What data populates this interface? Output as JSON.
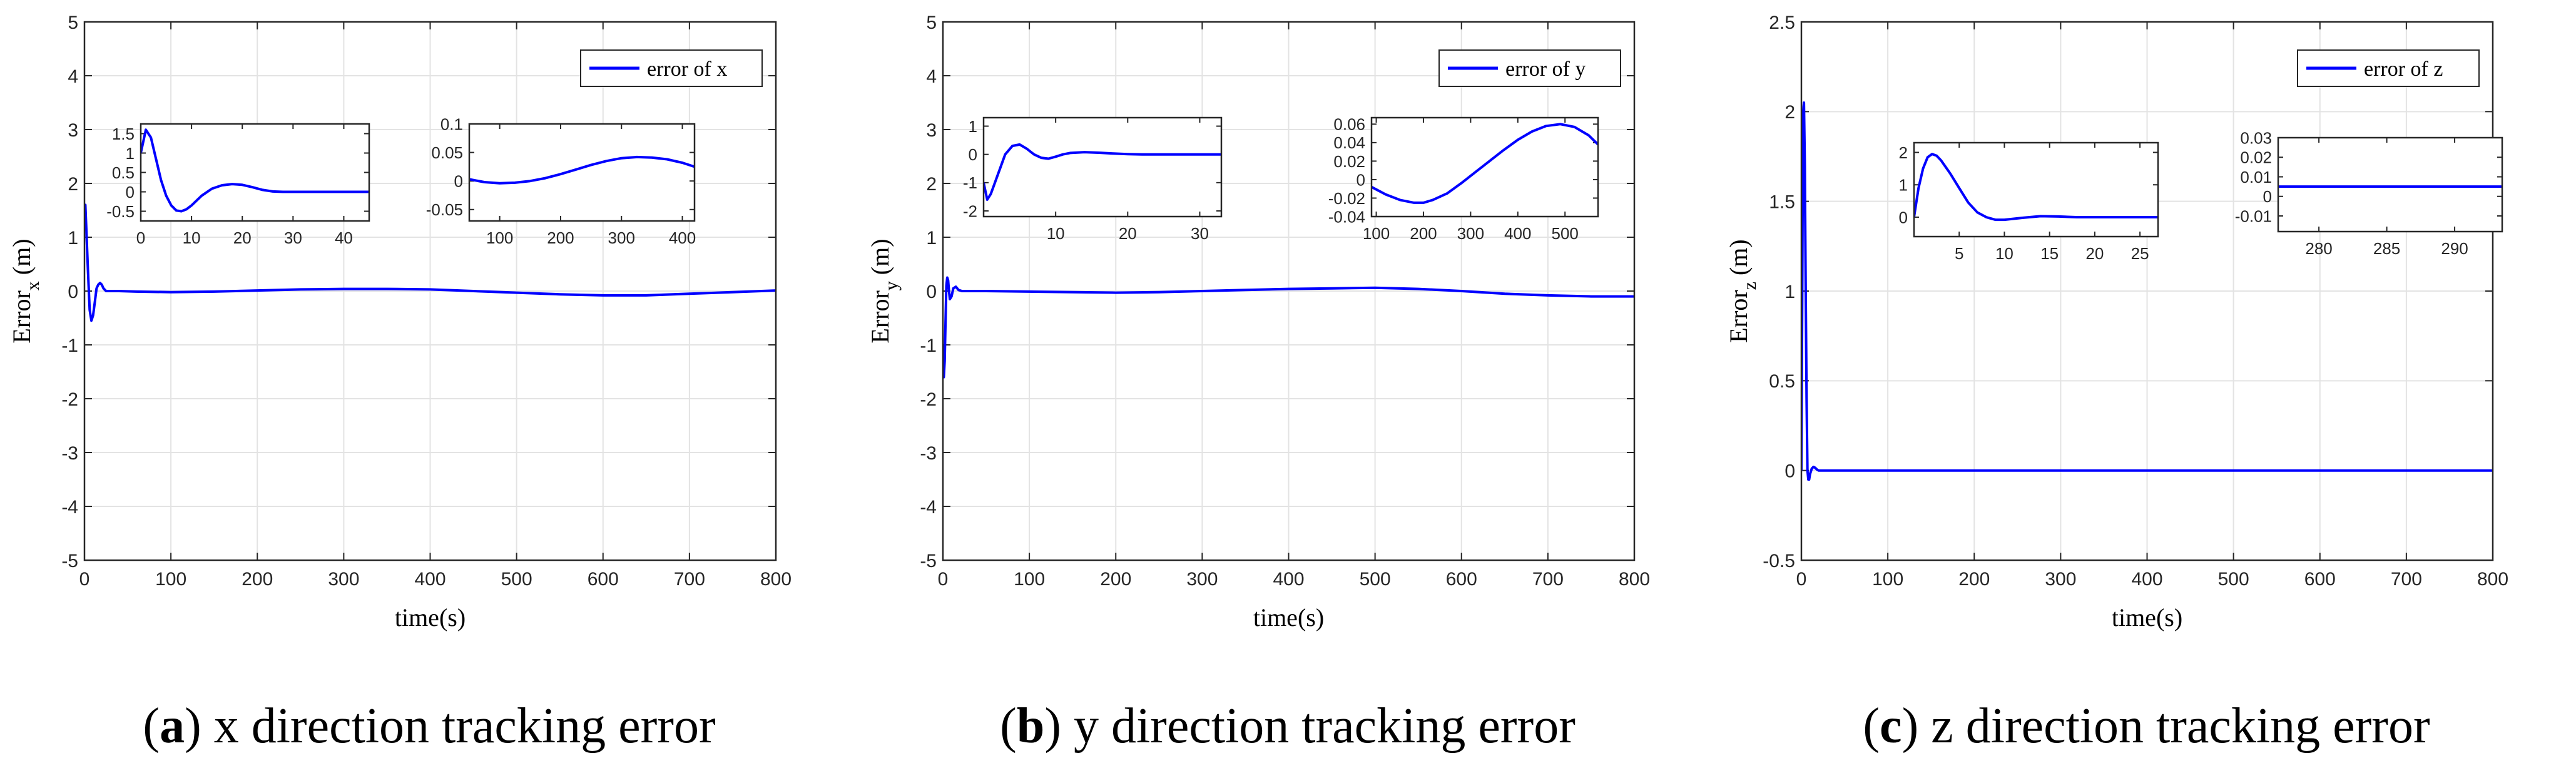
{
  "colors": {
    "series": "#0000ff",
    "grid": "#e3e3e3",
    "axis": "#262626"
  },
  "captions": [
    {
      "letter": "a",
      "text": "x direction tracking error"
    },
    {
      "letter": "b",
      "text": "y direction tracking error"
    },
    {
      "letter": "c",
      "text": "z direction tracking error"
    }
  ],
  "chart_data": [
    {
      "type": "line",
      "xlabel": "time(s)",
      "ylabel_main": "Error",
      "ylabel_sub": "x",
      "ylabel_unit": " (m)",
      "xlim": [
        0,
        800
      ],
      "ylim": [
        -5,
        5
      ],
      "xticks": [
        0,
        100,
        200,
        300,
        400,
        500,
        600,
        700,
        800
      ],
      "yticks": [
        -5,
        -4,
        -3,
        -2,
        -1,
        0,
        1,
        2,
        3,
        4,
        5
      ],
      "grid": true,
      "legend_position": "top-right",
      "series": [
        {
          "name": "error of x",
          "x": [
            0,
            1,
            2,
            4,
            6,
            8,
            10,
            12,
            14,
            16,
            18,
            20,
            22,
            25,
            28,
            32,
            40,
            60,
            100,
            150,
            200,
            250,
            300,
            350,
            400,
            450,
            500,
            550,
            600,
            650,
            700,
            750,
            800
          ],
          "y": [
            1.3,
            1.6,
            1.2,
            0.4,
            -0.35,
            -0.55,
            -0.45,
            -0.2,
            0.05,
            0.12,
            0.15,
            0.12,
            0.05,
            0.0,
            0.0,
            0.0,
            0.0,
            -0.01,
            -0.02,
            -0.01,
            0.01,
            0.03,
            0.04,
            0.04,
            0.03,
            0.0,
            -0.03,
            -0.06,
            -0.08,
            -0.08,
            -0.05,
            -0.02,
            0.01
          ]
        }
      ],
      "insets": [
        {
          "xlim": [
            0,
            45
          ],
          "ylim": [
            -0.75,
            1.75
          ],
          "xticks": [
            0,
            10,
            20,
            30,
            40
          ],
          "yticks": [
            -0.5,
            0,
            0.5,
            1,
            1.5
          ],
          "ytick_labels": [
            "-0.5",
            "0",
            "0.5",
            "1",
            "1.5"
          ],
          "x": [
            0,
            1,
            2,
            3,
            4,
            5,
            6,
            7,
            8,
            9,
            10,
            12,
            14,
            16,
            18,
            20,
            22,
            24,
            26,
            28,
            32,
            36,
            40,
            45
          ],
          "y": [
            1.0,
            1.6,
            1.4,
            0.85,
            0.3,
            -0.1,
            -0.35,
            -0.48,
            -0.5,
            -0.45,
            -0.35,
            -0.1,
            0.08,
            0.17,
            0.2,
            0.18,
            0.12,
            0.05,
            0.01,
            0.0,
            0.0,
            0.0,
            0.0,
            0.0
          ]
        },
        {
          "xlim": [
            50,
            420
          ],
          "ylim": [
            -0.07,
            0.1
          ],
          "xticks": [
            100,
            200,
            300,
            400
          ],
          "yticks": [
            -0.05,
            0,
            0.05,
            0.1
          ],
          "ytick_labels": [
            "-0.05",
            "0",
            "0.05",
            "0.1"
          ],
          "x": [
            50,
            75,
            100,
            125,
            150,
            175,
            200,
            225,
            250,
            275,
            300,
            325,
            350,
            375,
            400,
            420
          ],
          "y": [
            0.003,
            -0.002,
            -0.004,
            -0.003,
            0.0,
            0.005,
            0.012,
            0.02,
            0.028,
            0.035,
            0.04,
            0.042,
            0.041,
            0.038,
            0.032,
            0.025
          ]
        }
      ]
    },
    {
      "type": "line",
      "xlabel": "time(s)",
      "ylabel_main": "Error",
      "ylabel_sub": "y",
      "ylabel_unit": " (m)",
      "xlim": [
        0,
        800
      ],
      "ylim": [
        -5,
        5
      ],
      "xticks": [
        0,
        100,
        200,
        300,
        400,
        500,
        600,
        700,
        800
      ],
      "yticks": [
        -5,
        -4,
        -3,
        -2,
        -1,
        0,
        1,
        2,
        3,
        4,
        5
      ],
      "grid": true,
      "legend_position": "top-right",
      "series": [
        {
          "name": "error of y",
          "x": [
            0,
            1,
            2,
            3,
            4,
            5,
            6,
            7,
            8,
            10,
            12,
            15,
            18,
            22,
            30,
            50,
            100,
            150,
            200,
            250,
            300,
            350,
            400,
            450,
            500,
            550,
            600,
            650,
            700,
            750,
            800
          ],
          "y": [
            -1.0,
            -1.6,
            -1.3,
            -0.6,
            0.1,
            0.25,
            0.2,
            0.0,
            -0.15,
            -0.1,
            0.05,
            0.08,
            0.02,
            0.0,
            0.0,
            0.0,
            -0.01,
            -0.02,
            -0.03,
            -0.02,
            0.0,
            0.02,
            0.04,
            0.05,
            0.06,
            0.04,
            0.0,
            -0.05,
            -0.08,
            -0.1,
            -0.1
          ]
        }
      ],
      "insets": [
        {
          "xlim": [
            0,
            33
          ],
          "ylim": [
            -2.2,
            1.3
          ],
          "xticks": [
            10,
            20,
            30
          ],
          "yticks": [
            -2,
            -1,
            0,
            1
          ],
          "ytick_labels": [
            "-2",
            "-1",
            "0",
            "1"
          ],
          "x": [
            0,
            0.5,
            1,
            2,
            3,
            4,
            5,
            6,
            7,
            8,
            9,
            10,
            11,
            12,
            14,
            16,
            18,
            20,
            22,
            25,
            28,
            33
          ],
          "y": [
            -1.0,
            -1.6,
            -1.4,
            -0.7,
            0.0,
            0.3,
            0.35,
            0.2,
            0.0,
            -0.12,
            -0.15,
            -0.08,
            0.0,
            0.05,
            0.08,
            0.06,
            0.03,
            0.01,
            0.0,
            0.0,
            0.0,
            0.0
          ]
        },
        {
          "xlim": [
            90,
            570
          ],
          "ylim": [
            -0.04,
            0.067
          ],
          "xticks": [
            100,
            200,
            300,
            400,
            500
          ],
          "yticks": [
            -0.04,
            -0.02,
            0,
            0.02,
            0.04,
            0.06
          ],
          "ytick_labels": [
            "-0.04",
            "-0.02",
            "0",
            "0.02",
            "0.04",
            "0.06"
          ],
          "x": [
            90,
            120,
            150,
            180,
            200,
            220,
            250,
            280,
            310,
            340,
            370,
            400,
            430,
            460,
            490,
            520,
            550,
            570
          ],
          "y": [
            -0.008,
            -0.016,
            -0.022,
            -0.025,
            -0.025,
            -0.022,
            -0.015,
            -0.004,
            0.008,
            0.02,
            0.032,
            0.043,
            0.052,
            0.058,
            0.06,
            0.057,
            0.048,
            0.038
          ]
        }
      ]
    },
    {
      "type": "line",
      "xlabel": "time(s)",
      "ylabel_main": "Error",
      "ylabel_sub": "z",
      "ylabel_unit": " (m)",
      "xlim": [
        0,
        800
      ],
      "ylim": [
        -0.5,
        2.5
      ],
      "xticks": [
        0,
        100,
        200,
        300,
        400,
        500,
        600,
        700,
        800
      ],
      "yticks": [
        -0.5,
        0,
        0.5,
        1,
        1.5,
        2,
        2.5
      ],
      "grid": true,
      "legend_position": "top-right",
      "series": [
        {
          "name": "error of z",
          "x": [
            0,
            1,
            2,
            3,
            4,
            5,
            6,
            7,
            8,
            9,
            10,
            12,
            14,
            16,
            18,
            20,
            25,
            30,
            50,
            100,
            200,
            300,
            400,
            500,
            600,
            700,
            800
          ],
          "y": [
            0.0,
            1.0,
            2.0,
            2.05,
            1.7,
            1.0,
            0.4,
            0.0,
            -0.05,
            -0.05,
            -0.02,
            0.01,
            0.02,
            0.015,
            0.005,
            0.0,
            0.0,
            0.0,
            0.0,
            0.0,
            0.0,
            0.0,
            0.0,
            0.0,
            0.0,
            0.0,
            0.0
          ]
        }
      ],
      "insets": [
        {
          "xlim": [
            0,
            27
          ],
          "ylim": [
            -0.6,
            2.3
          ],
          "xticks": [
            5,
            10,
            15,
            20,
            25
          ],
          "yticks": [
            0,
            1,
            2
          ],
          "ytick_labels": [
            "0",
            "1",
            "2"
          ],
          "x": [
            0,
            0.5,
            1,
            1.5,
            2,
            2.5,
            3,
            3.5,
            4,
            5,
            6,
            7,
            8,
            9,
            10,
            12,
            14,
            16,
            18,
            20,
            23,
            27
          ],
          "y": [
            0.0,
            0.9,
            1.5,
            1.85,
            1.95,
            1.9,
            1.75,
            1.55,
            1.35,
            0.9,
            0.45,
            0.15,
            0.0,
            -0.08,
            -0.08,
            -0.02,
            0.03,
            0.02,
            0.0,
            0.0,
            0.0,
            0.0
          ]
        },
        {
          "xlim": [
            277,
            293.5
          ],
          "ylim": [
            -0.018,
            0.03
          ],
          "xticks": [
            280,
            285,
            290
          ],
          "yticks": [
            -0.01,
            0,
            0.01,
            0.02,
            0.03
          ],
          "ytick_labels": [
            "-0.01",
            "0",
            "0.01",
            "0.02",
            "0.03"
          ],
          "x": [
            277,
            280,
            285,
            290,
            293.5
          ],
          "y": [
            0.005,
            0.005,
            0.005,
            0.005,
            0.005
          ]
        }
      ]
    }
  ]
}
